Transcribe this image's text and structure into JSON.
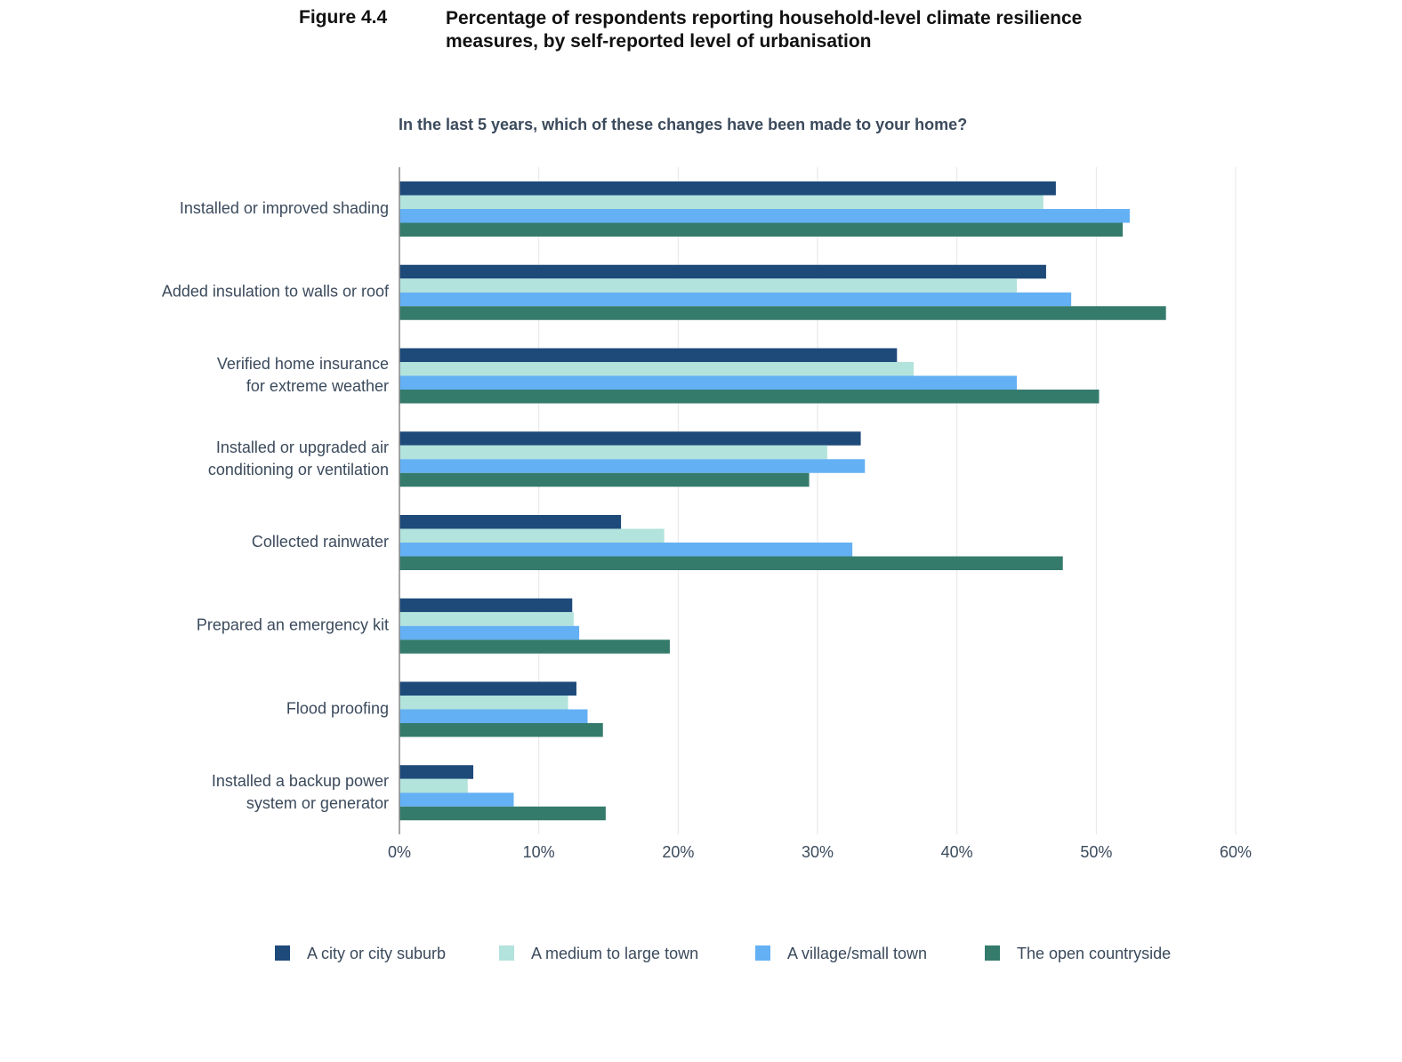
{
  "chart_data": {
    "type": "hbar",
    "figure_label": "Figure 4.4",
    "title": "Percentage of respondents reporting household-level climate resilience measures, by self-reported level of urbanisation",
    "subtitle": "In the last 5 years, which of these changes have been made to your home?",
    "categories": [
      "Installed or improved shading",
      "Added insulation to walls or roof",
      "Verified home insurance\nfor extreme weather",
      "Installed or upgraded air\nconditioning or ventilation",
      "Collected rainwater",
      "Prepared an emergency kit",
      "Flood proofing",
      "Installed a backup power\nsystem or generator"
    ],
    "series": [
      {
        "name": "A city or city suburb",
        "color": "#1e4a7a",
        "values": [
          47.1,
          46.4,
          35.7,
          33.1,
          15.9,
          12.4,
          12.7,
          5.3
        ]
      },
      {
        "name": "A medium to large town",
        "color": "#b2e3dc",
        "values": [
          46.2,
          44.3,
          36.9,
          30.7,
          19.0,
          12.5,
          12.1,
          4.9
        ]
      },
      {
        "name": "A village/small town",
        "color": "#64b0f4",
        "values": [
          52.4,
          48.2,
          44.3,
          33.4,
          32.5,
          12.9,
          13.5,
          8.2
        ]
      },
      {
        "name": "The open countryside",
        "color": "#357b6c",
        "values": [
          51.9,
          55.0,
          50.2,
          29.4,
          47.6,
          19.4,
          14.6,
          14.8
        ]
      }
    ],
    "xlim": [
      0,
      60
    ],
    "xticks": [
      {
        "value": 0,
        "label": "0%"
      },
      {
        "value": 10,
        "label": "10%"
      },
      {
        "value": 20,
        "label": "20%"
      },
      {
        "value": 30,
        "label": "30%"
      },
      {
        "value": 40,
        "label": "40%"
      },
      {
        "value": 50,
        "label": "50%"
      },
      {
        "value": 60,
        "label": "60%"
      }
    ],
    "grid": true,
    "legend": "bottom"
  }
}
